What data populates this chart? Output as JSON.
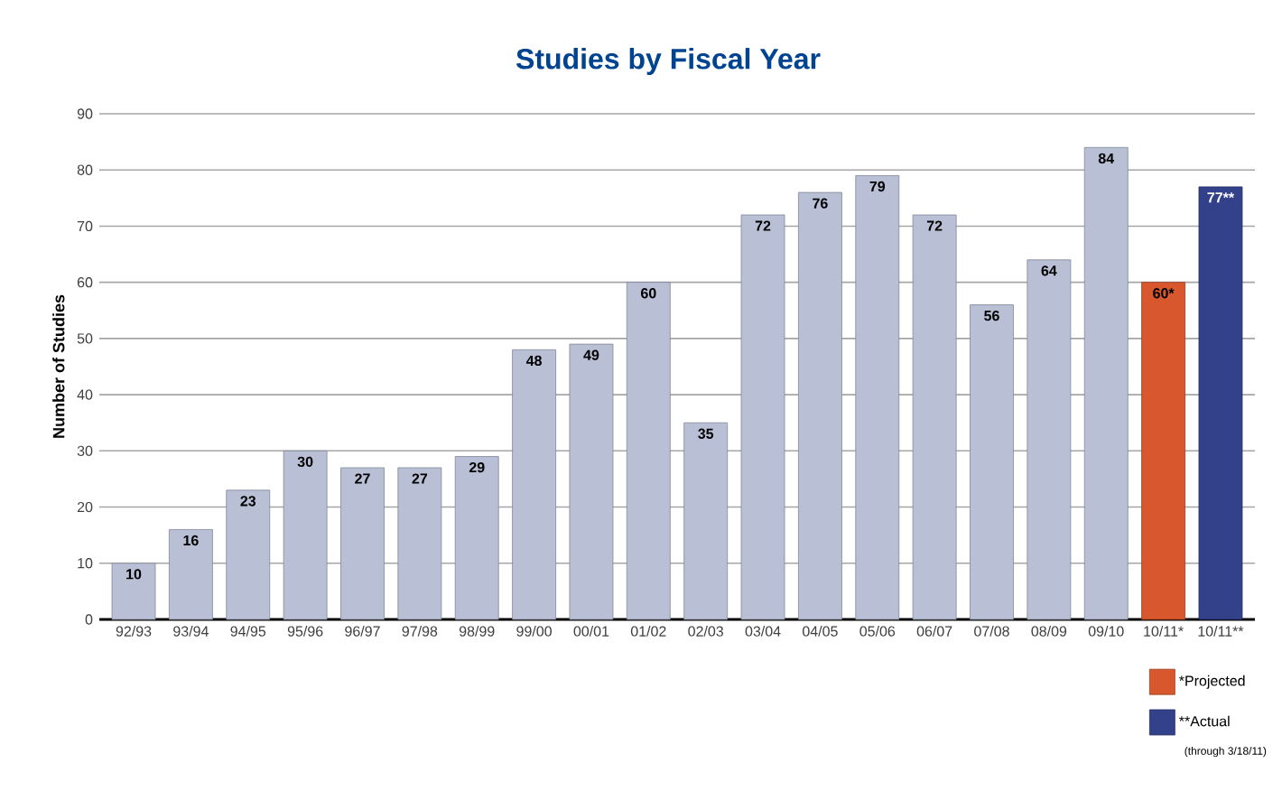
{
  "chart_data": {
    "type": "bar",
    "title": "Studies by Fiscal Year",
    "ylabel": "Number of Studies",
    "categories": [
      "92/93",
      "93/94",
      "94/95",
      "95/96",
      "96/97",
      "97/98",
      "98/99",
      "99/00",
      "00/01",
      "01/02",
      "02/03",
      "03/04",
      "04/05",
      "05/06",
      "06/07",
      "07/08",
      "08/09",
      "09/10",
      "10/11*",
      "10/11**"
    ],
    "series": [
      {
        "color": "#b9c0d6",
        "values": [
          10,
          16,
          23,
          30,
          27,
          27,
          29,
          48,
          49,
          60,
          35,
          72,
          76,
          79,
          72,
          56,
          64,
          84,
          null,
          null
        ],
        "value_labels": [
          "10",
          "16",
          "23",
          "30",
          "27",
          "27",
          "29",
          "48",
          "49",
          "60",
          "35",
          "72",
          "76",
          "79",
          "72",
          "56",
          "64",
          "84",
          null,
          null
        ]
      },
      {
        "name": "*Projected",
        "color": "#d9572c",
        "values": [
          null,
          null,
          null,
          null,
          null,
          null,
          null,
          null,
          null,
          null,
          null,
          null,
          null,
          null,
          null,
          null,
          null,
          null,
          60,
          null
        ],
        "value_labels": [
          null,
          null,
          null,
          null,
          null,
          null,
          null,
          null,
          null,
          null,
          null,
          null,
          null,
          null,
          null,
          null,
          null,
          null,
          "60*",
          null
        ]
      },
      {
        "name": "**Actual",
        "color": "#33408a",
        "values": [
          null,
          null,
          null,
          null,
          null,
          null,
          null,
          null,
          null,
          null,
          null,
          null,
          null,
          null,
          null,
          null,
          null,
          null,
          null,
          77
        ],
        "value_labels": [
          null,
          null,
          null,
          null,
          null,
          null,
          null,
          null,
          null,
          null,
          null,
          null,
          null,
          null,
          null,
          null,
          null,
          null,
          null,
          "77**"
        ]
      }
    ],
    "ylim": [
      0,
      90
    ],
    "yticks": [
      0,
      10,
      20,
      30,
      40,
      50,
      60,
      70,
      80,
      90
    ],
    "grid": "y",
    "legend": "bottom right",
    "annotations": [
      "(through 3/18/11)"
    ]
  }
}
